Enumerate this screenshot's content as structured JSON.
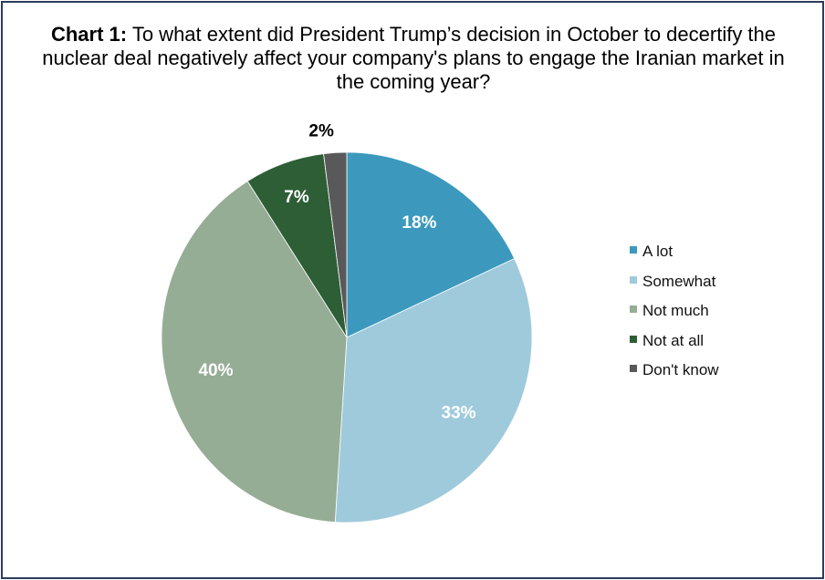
{
  "chart_data": {
    "type": "pie",
    "title_prefix": "Chart 1:",
    "title": "To what extent did President Trump’s decision in October to decertify the nuclear deal negatively affect your company's plans to engage the Iranian market in the coming year?",
    "legend_position": "right",
    "slices": [
      {
        "name": "A lot",
        "value": 18,
        "label": "18%",
        "color": "#3c99bd",
        "label_color": "#ffffff"
      },
      {
        "name": "Somewhat",
        "value": 33,
        "label": "33%",
        "color": "#9fcadc",
        "label_color": "#ffffff"
      },
      {
        "name": "Not much",
        "value": 40,
        "label": "40%",
        "color": "#95ad95",
        "label_color": "#ffffff"
      },
      {
        "name": "Not at all",
        "value": 7,
        "label": "7%",
        "color": "#2e5e36",
        "label_color": "#ffffff"
      },
      {
        "name": "Don't know",
        "value": 2,
        "label": "2%",
        "color": "#595959",
        "label_color": "#000000"
      }
    ]
  }
}
